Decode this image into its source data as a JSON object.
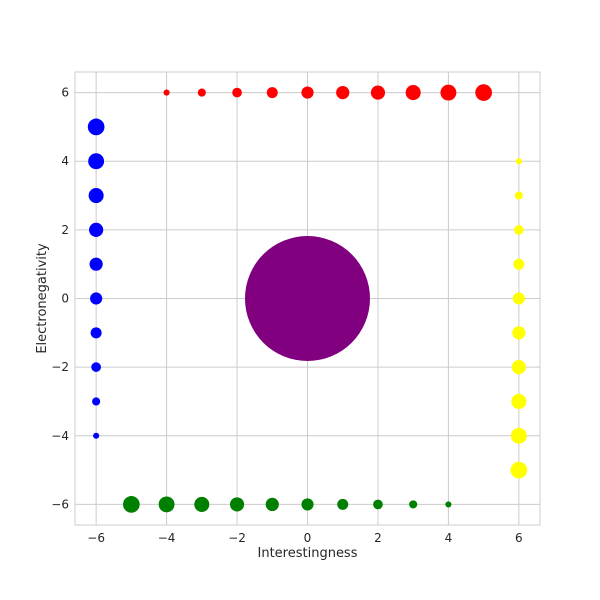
{
  "chart_data": {
    "type": "scatter",
    "xlabel": "Interestingness",
    "ylabel": "Electronegativity",
    "xlim": [
      -6.6,
      6.6
    ],
    "ylim": [
      -6.6,
      6.6
    ],
    "xticks": [
      -6,
      -4,
      -2,
      0,
      2,
      4,
      6
    ],
    "yticks": [
      -6,
      -4,
      -2,
      0,
      2,
      4,
      6
    ],
    "xtick_labels": [
      "−6",
      "−4",
      "−2",
      "0",
      "2",
      "4",
      "6"
    ],
    "ytick_labels": [
      "−6",
      "−4",
      "−2",
      "0",
      "2",
      "4",
      "6"
    ],
    "grid": true,
    "series": [
      {
        "color": "#ff0000",
        "points": [
          {
            "x": -4,
            "y": 6,
            "size": 1
          },
          {
            "x": -3,
            "y": 6,
            "size": 2
          },
          {
            "x": -2,
            "y": 6,
            "size": 3
          },
          {
            "x": -1,
            "y": 6,
            "size": 4
          },
          {
            "x": 0,
            "y": 6,
            "size": 5
          },
          {
            "x": 1,
            "y": 6,
            "size": 6
          },
          {
            "x": 2,
            "y": 6,
            "size": 7
          },
          {
            "x": 3,
            "y": 6,
            "size": 8
          },
          {
            "x": 4,
            "y": 6,
            "size": 9
          },
          {
            "x": 5,
            "y": 6,
            "size": 10
          }
        ]
      },
      {
        "color": "#ffff00",
        "points": [
          {
            "x": 6,
            "y": 4,
            "size": 1
          },
          {
            "x": 6,
            "y": 3,
            "size": 2
          },
          {
            "x": 6,
            "y": 2,
            "size": 3
          },
          {
            "x": 6,
            "y": 1,
            "size": 4
          },
          {
            "x": 6,
            "y": 0,
            "size": 5
          },
          {
            "x": 6,
            "y": -1,
            "size": 6
          },
          {
            "x": 6,
            "y": -2,
            "size": 7
          },
          {
            "x": 6,
            "y": -3,
            "size": 8
          },
          {
            "x": 6,
            "y": -4,
            "size": 9
          },
          {
            "x": 6,
            "y": -5,
            "size": 10
          }
        ]
      },
      {
        "color": "#008000",
        "points": [
          {
            "x": 4,
            "y": -6,
            "size": 1
          },
          {
            "x": 3,
            "y": -6,
            "size": 2
          },
          {
            "x": 2,
            "y": -6,
            "size": 3
          },
          {
            "x": 1,
            "y": -6,
            "size": 4
          },
          {
            "x": 0,
            "y": -6,
            "size": 5
          },
          {
            "x": -1,
            "y": -6,
            "size": 6
          },
          {
            "x": -2,
            "y": -6,
            "size": 7
          },
          {
            "x": -3,
            "y": -6,
            "size": 8
          },
          {
            "x": -4,
            "y": -6,
            "size": 9
          },
          {
            "x": -5,
            "y": -6,
            "size": 10
          }
        ]
      },
      {
        "color": "#0000ff",
        "points": [
          {
            "x": -6,
            "y": -4,
            "size": 1
          },
          {
            "x": -6,
            "y": -3,
            "size": 2
          },
          {
            "x": -6,
            "y": -2,
            "size": 3
          },
          {
            "x": -6,
            "y": -1,
            "size": 4
          },
          {
            "x": -6,
            "y": 0,
            "size": 5
          },
          {
            "x": -6,
            "y": 1,
            "size": 6
          },
          {
            "x": -6,
            "y": 2,
            "size": 7
          },
          {
            "x": -6,
            "y": 3,
            "size": 8
          },
          {
            "x": -6,
            "y": 4,
            "size": 9
          },
          {
            "x": -6,
            "y": 5,
            "size": 10
          }
        ]
      },
      {
        "color": "#800080",
        "points": [
          {
            "x": 0,
            "y": 0,
            "size": 100
          }
        ]
      }
    ]
  }
}
